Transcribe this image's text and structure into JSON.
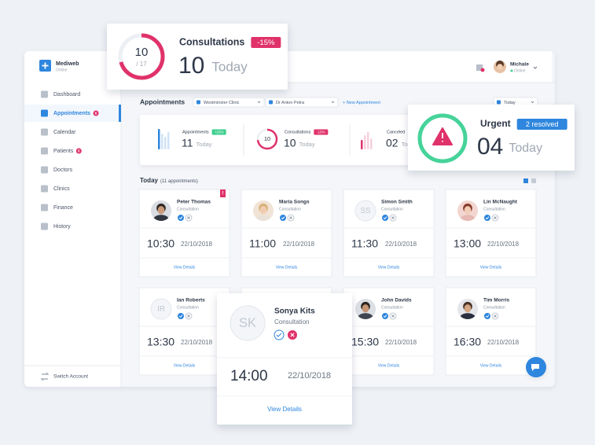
{
  "consult_card": {
    "count": "10",
    "total": "/ 17",
    "title": "Consultations",
    "badge": "-15%",
    "value": "10",
    "period": "Today"
  },
  "sidebar": {
    "brand": "Mediweb",
    "status": "Online",
    "nav": [
      {
        "label": "Dashboard"
      },
      {
        "label": "Appointments",
        "badge": "6"
      },
      {
        "label": "Calendar"
      },
      {
        "label": "Patients",
        "badge": "5"
      },
      {
        "label": "Doctors"
      },
      {
        "label": "Clinics"
      },
      {
        "label": "Finance"
      },
      {
        "label": "History"
      }
    ],
    "footer": "Switch Account"
  },
  "user": {
    "name": "Michale",
    "status": "Online"
  },
  "toolbar": {
    "title": "Appointments",
    "clinic": "Westminster Clinic",
    "doctor": "Dr Anton Petra",
    "new": "+ New Appointment",
    "range": "Today"
  },
  "stats": [
    {
      "label": "Appointments",
      "badge": "+23%",
      "value": "11",
      "period": "Today"
    },
    {
      "label": "Consultations",
      "badge": "-15%",
      "ring": "10",
      "value": "10",
      "period": "Today"
    },
    {
      "label": "Canceled",
      "value": "02",
      "period": "Today"
    }
  ],
  "urgent": {
    "title": "Urgent",
    "badge": "2 resolved",
    "value": "04",
    "period": "Today"
  },
  "section": {
    "title": "Today",
    "count": "(11 appointments)"
  },
  "appointments": [
    {
      "name": "Peter Thomas",
      "type": "Consultation",
      "time": "10:30",
      "date": "22/10/2018",
      "link": "View Details",
      "flag": "!"
    },
    {
      "name": "Maria Songs",
      "type": "Consultation",
      "time": "11:00",
      "date": "22/10/2018",
      "link": "View Details"
    },
    {
      "name": "Simon Smith",
      "initials": "SS",
      "type": "Consultation",
      "time": "11:30",
      "date": "22/10/2018",
      "link": "View Details"
    },
    {
      "name": "Lin McNaught",
      "type": "Consultation",
      "time": "13:00",
      "date": "22/10/2018",
      "link": "View Details"
    },
    {
      "name": "Ian Roberts",
      "initials": "IR",
      "type": "Consultation",
      "time": "13:30",
      "date": "22/10/2018",
      "link": "View Details"
    },
    {
      "name": "John Davids",
      "type": "Consultation",
      "time": "15:30",
      "date": "22/10/2018",
      "link": "View Details"
    },
    {
      "name": "Tim Morris",
      "type": "Consultation",
      "time": "16:30",
      "date": "22/10/2018",
      "link": "View Details"
    }
  ],
  "popup": {
    "name": "Sonya Kits",
    "initials": "SK",
    "type": "Consultation",
    "time": "14:00",
    "date": "22/10/2018",
    "link": "View Details"
  }
}
